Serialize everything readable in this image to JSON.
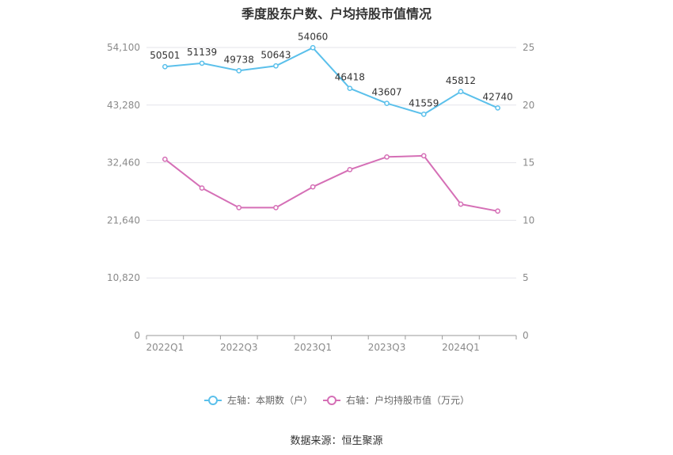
{
  "chart_data": {
    "type": "line",
    "title": "季度股东户数、户均持股市值情况",
    "categories": [
      "2022Q1",
      "2022Q2",
      "2022Q3",
      "2022Q4",
      "2023Q1",
      "2023Q2",
      "2023Q3",
      "2023Q4",
      "2024Q1",
      "2024Q2"
    ],
    "x_tick_labels": [
      "2022Q1",
      "2022Q3",
      "2023Q1",
      "2023Q3",
      "2024Q1"
    ],
    "series": [
      {
        "name": "左轴：本期数（户）",
        "axis": "left",
        "color": "#5bc0eb",
        "values": [
          50501,
          51139,
          49738,
          50643,
          54060,
          46418,
          43607,
          41559,
          45812,
          42740
        ],
        "labels": [
          "50501",
          "51139",
          "49738",
          "50643",
          "54060",
          "46418",
          "43607",
          "41559",
          "45812",
          "42740"
        ]
      },
      {
        "name": "右轴：户均持股市值（万元）",
        "axis": "right",
        "color": "#d56fb6",
        "values": [
          15.3,
          12.8,
          11.1,
          11.1,
          12.9,
          14.4,
          15.5,
          15.6,
          11.4,
          10.8
        ]
      }
    ],
    "left_axis": {
      "min": 0,
      "max": 54100,
      "ticks": [
        "0",
        "10,820",
        "21,640",
        "32,460",
        "43,280",
        "54,100"
      ]
    },
    "right_axis": {
      "min": 0,
      "max": 25,
      "ticks": [
        "0",
        "5",
        "10",
        "15",
        "20",
        "25"
      ]
    },
    "grid": true,
    "legend_position": "bottom"
  },
  "source": "数据来源：恒生聚源"
}
